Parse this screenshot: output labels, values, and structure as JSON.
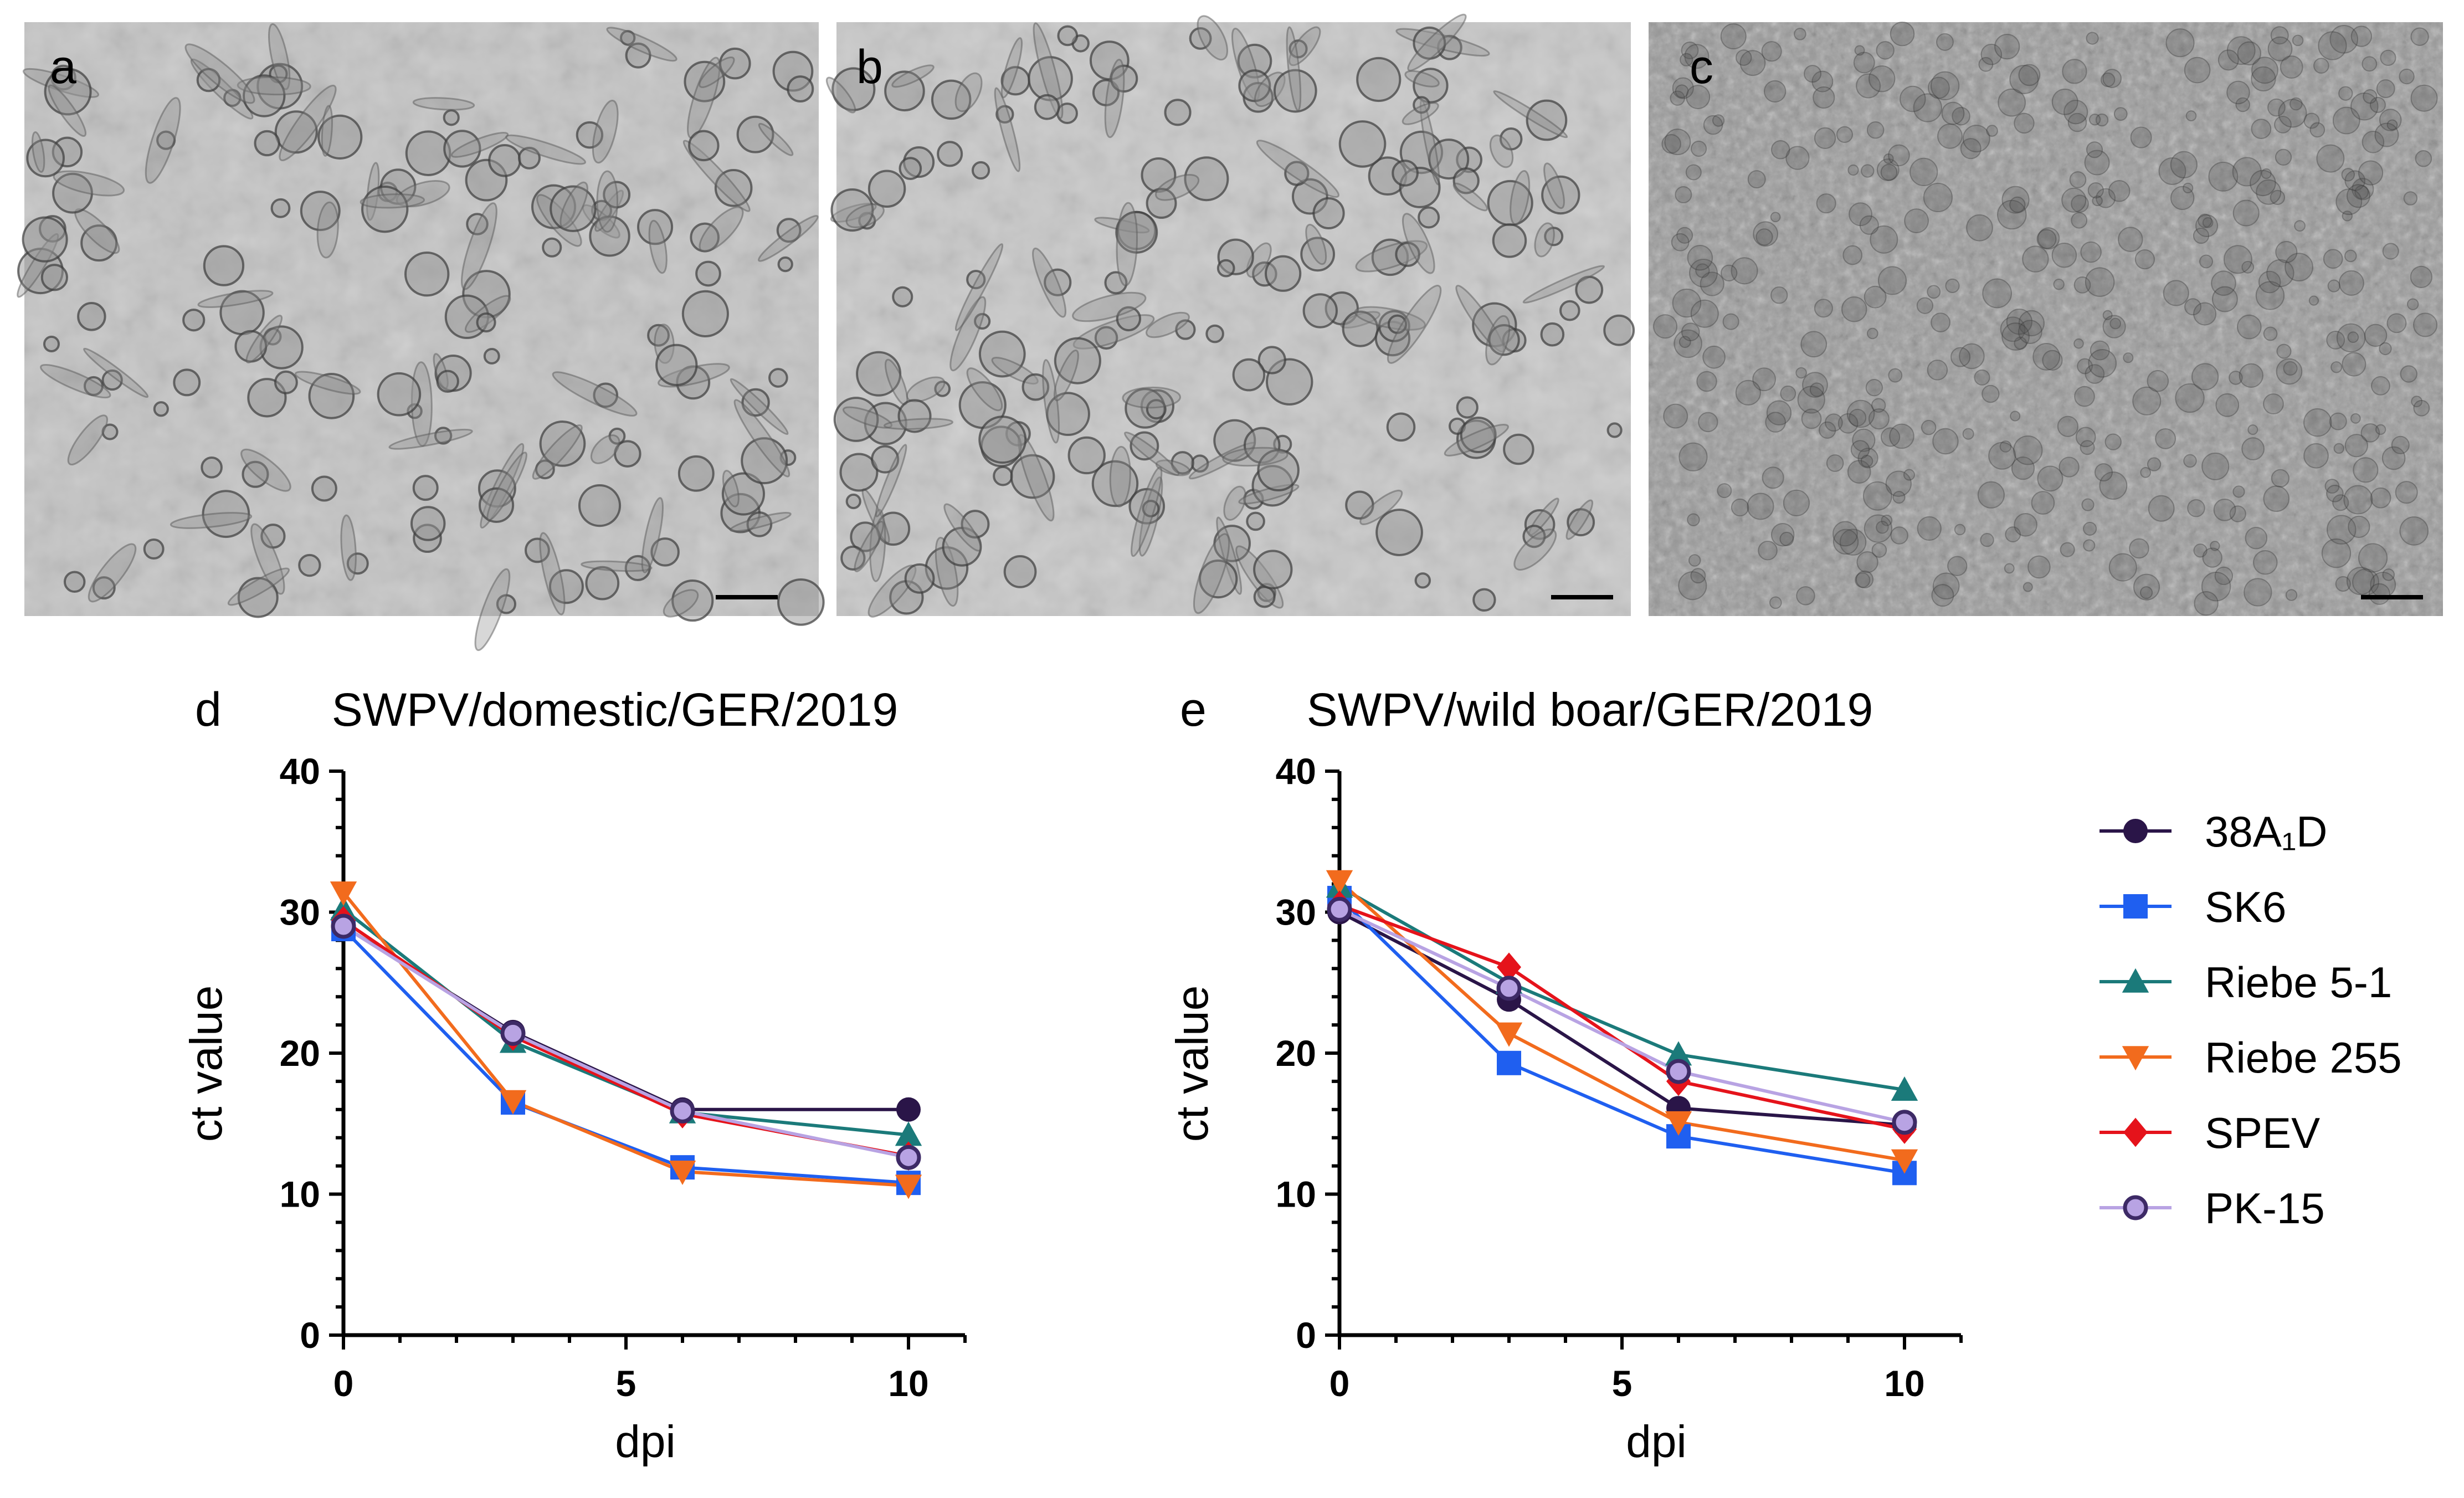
{
  "micrographs": [
    {
      "letter": "a",
      "description_icon": "cell-micrograph",
      "tone": "#c4c4c4"
    },
    {
      "letter": "b",
      "description_icon": "cell-micrograph",
      "tone": "#c8c8c8"
    },
    {
      "letter": "c",
      "description_icon": "cell-micrograph",
      "tone": "#9a9a9a"
    }
  ],
  "series_styles": [
    {
      "name": "38A₁D",
      "color": "#2a1548",
      "marker": "circle"
    },
    {
      "name": "SK6",
      "color": "#1f5ff0",
      "marker": "square"
    },
    {
      "name": "Riebe 5-1",
      "color": "#1b7a7a",
      "marker": "triangle-up"
    },
    {
      "name": "Riebe 255",
      "color": "#f26b1d",
      "marker": "triangle-down"
    },
    {
      "name": "SPEV",
      "color": "#e5131b",
      "marker": "diamond"
    },
    {
      "name": "PK-15",
      "color": "#b8a3e3",
      "marker": "circle-outlined",
      "edge": "#3d2a66"
    }
  ],
  "chart_data": [
    {
      "panel": "d",
      "type": "line",
      "title": "SWPV/domestic/GER/2019",
      "xlabel": "dpi",
      "ylabel": "ct value",
      "xlim": [
        0,
        11
      ],
      "ylim": [
        0,
        40
      ],
      "xticks": [
        0,
        5,
        10
      ],
      "yticks": [
        0,
        10,
        20,
        30,
        40
      ],
      "x": [
        0,
        3,
        6,
        10
      ],
      "series": [
        {
          "name": "38A₁D",
          "values": [
            29.0,
            21.5,
            16.0,
            16.0
          ]
        },
        {
          "name": "SK6",
          "values": [
            28.8,
            16.5,
            11.9,
            10.8
          ]
        },
        {
          "name": "Riebe 5-1",
          "values": [
            30.2,
            20.8,
            15.8,
            14.2
          ]
        },
        {
          "name": "Riebe 255",
          "values": [
            31.4,
            16.6,
            11.6,
            10.6
          ]
        },
        {
          "name": "SPEV",
          "values": [
            29.4,
            21.2,
            15.7,
            12.7
          ]
        },
        {
          "name": "PK-15",
          "values": [
            29.0,
            21.4,
            15.9,
            12.6
          ]
        }
      ]
    },
    {
      "panel": "e",
      "type": "line",
      "title": "SWPV/wild boar/GER/2019",
      "xlabel": "dpi",
      "ylabel": "ct value",
      "xlim": [
        0,
        11
      ],
      "ylim": [
        0,
        40
      ],
      "xticks": [
        0,
        5,
        10
      ],
      "yticks": [
        0,
        10,
        20,
        30,
        40
      ],
      "x": [
        0,
        3,
        6,
        10
      ],
      "legend_position": "right",
      "series": [
        {
          "name": "38A₁D",
          "values": [
            30.0,
            23.8,
            16.1,
            14.9
          ]
        },
        {
          "name": "SK6",
          "values": [
            31.0,
            19.3,
            14.1,
            11.5
          ]
        },
        {
          "name": "Riebe 5-1",
          "values": [
            31.8,
            25.0,
            19.9,
            17.4
          ]
        },
        {
          "name": "Riebe 255",
          "values": [
            32.2,
            21.4,
            15.1,
            12.4
          ]
        },
        {
          "name": "SPEV",
          "values": [
            30.5,
            26.1,
            18.0,
            14.6
          ]
        },
        {
          "name": "PK-15",
          "values": [
            30.2,
            24.6,
            18.7,
            15.1
          ]
        }
      ]
    }
  ]
}
